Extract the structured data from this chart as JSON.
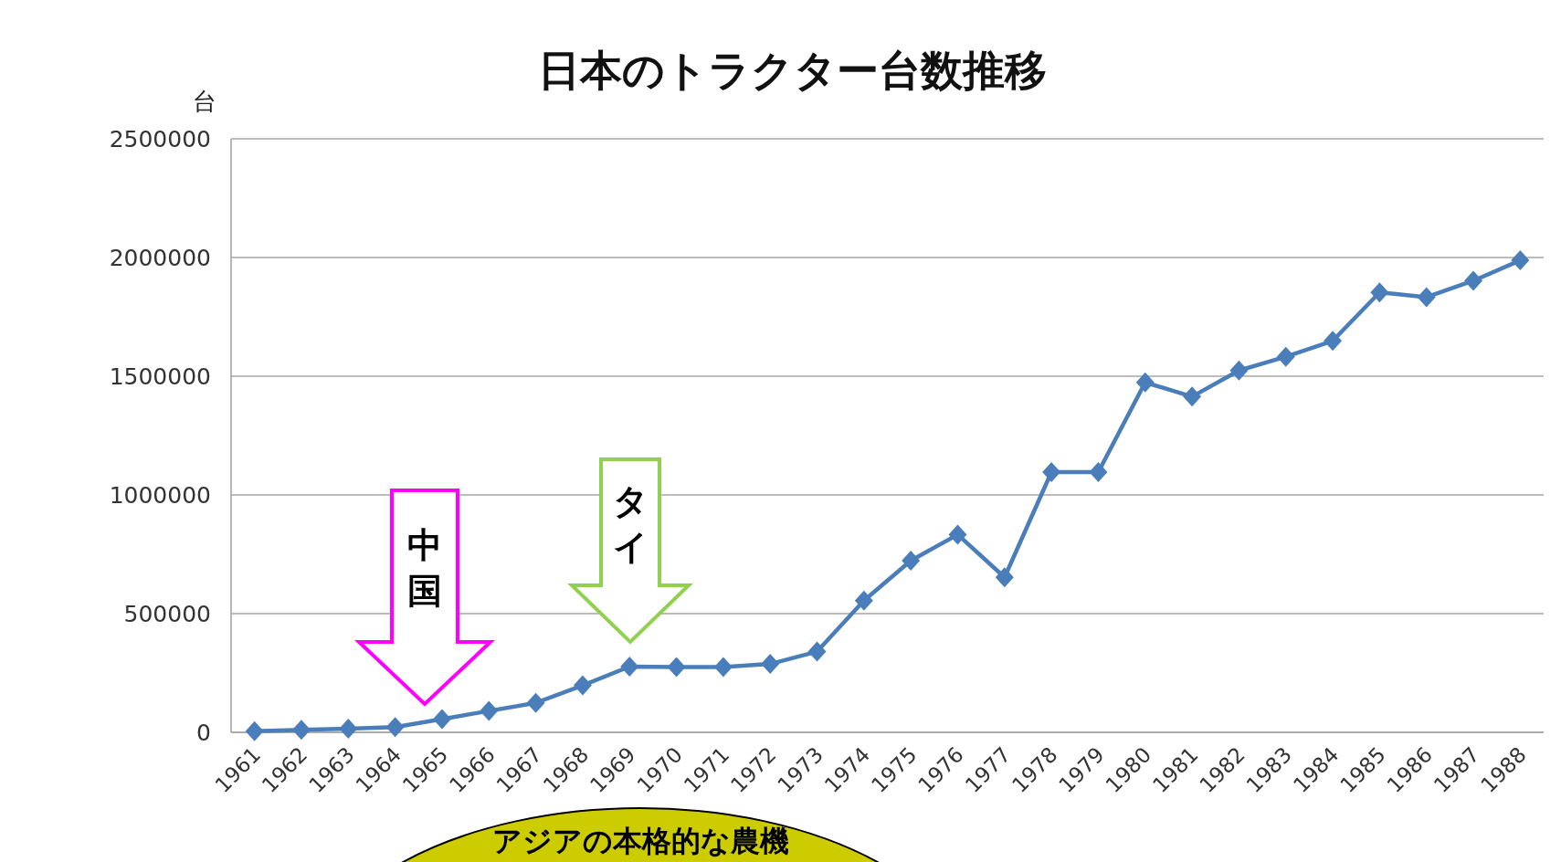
{
  "chart_data": {
    "type": "line",
    "title": "日本のトラクター台数推移",
    "ylabel": "台",
    "categories": [
      "1961",
      "1962",
      "1963",
      "1964",
      "1965",
      "1966",
      "1967",
      "1968",
      "1969",
      "1970",
      "1971",
      "1972",
      "1973",
      "1974",
      "1975",
      "1976",
      "1977",
      "1978",
      "1979",
      "1980",
      "1981",
      "1982",
      "1983",
      "1984",
      "1985",
      "1986",
      "1987",
      "1988"
    ],
    "series": [
      {
        "color": "#4a7ebb",
        "values": [
          5000,
          11000,
          15000,
          22000,
          56000,
          90000,
          124000,
          198000,
          277000,
          275000,
          275000,
          288000,
          340000,
          555000,
          723000,
          833000,
          653000,
          1096000,
          1096000,
          1474000,
          1414000,
          1524000,
          1582000,
          1649000,
          1853000,
          1833000,
          1902000,
          1988000
        ]
      }
    ],
    "ylim": [
      0,
      2500000
    ],
    "yticks": [
      0,
      500000,
      1000000,
      1500000,
      2000000,
      2500000
    ],
    "grid": "y",
    "marker": "diamond",
    "line_style": "solid",
    "annotations": [
      "中国",
      "タイ",
      "アジアの本格的な農機"
    ]
  }
}
